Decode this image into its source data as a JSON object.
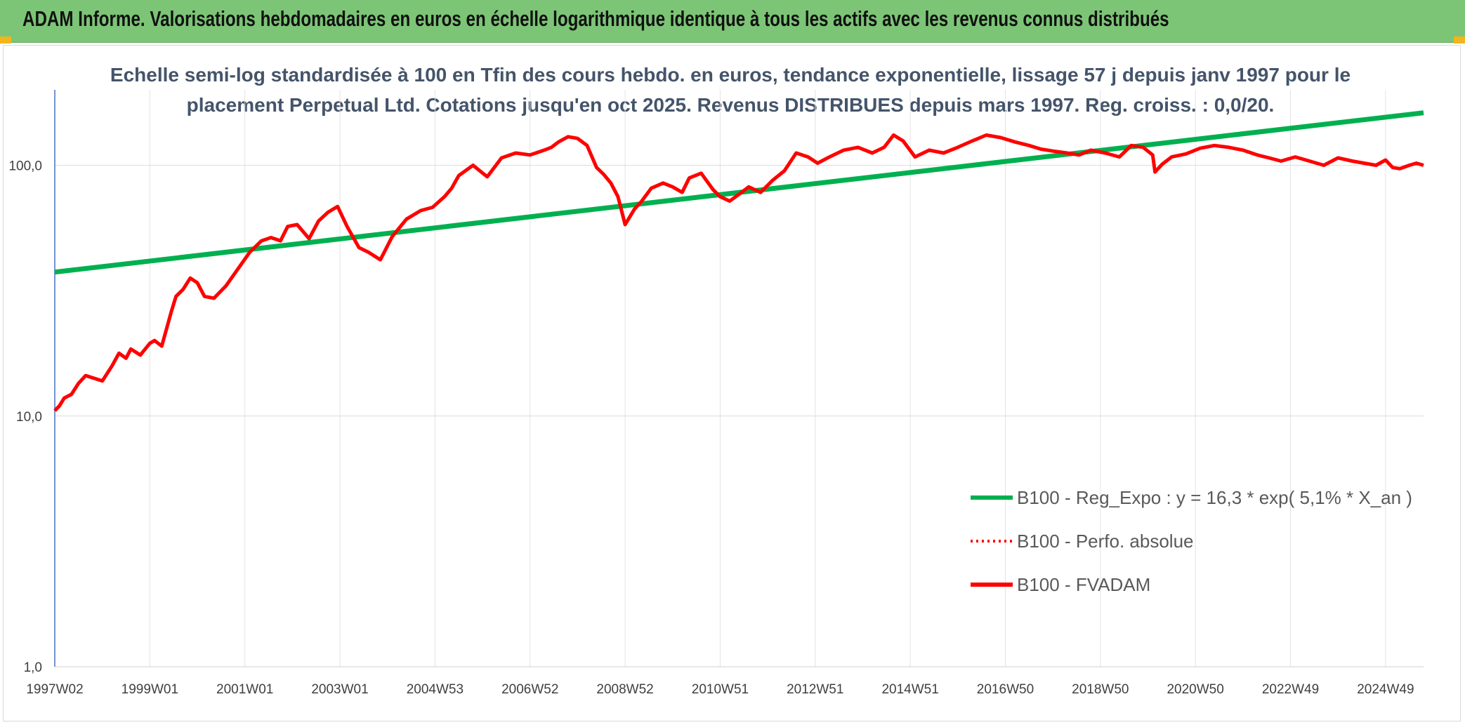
{
  "header": {
    "title": "ADAM Informe. Valorisations hebdomadaires en euros en échelle logarithmique identique à tous les actifs avec les revenus connus distribués"
  },
  "colors": {
    "header_bg": "#7cc576",
    "regression": "#00b050",
    "series": "#ff0000"
  },
  "chart_data": {
    "type": "line",
    "title": "",
    "subtitle_lines": [
      "Echelle semi-log standardisée à 100 en Tfin des cours hebdo. en euros, tendance exponentielle, lissage 57 j depuis janv 1997 pour le",
      "placement Perpetual Ltd. Cotations jusqu'en oct 2025. Revenus DISTRIBUES depuis mars 1997. Reg. croiss. : 0,0/20."
    ],
    "xlabel": "",
    "ylabel": "",
    "y_scale": "log",
    "ylim": [
      1,
      200
    ],
    "y_ticks": [
      1,
      10,
      100
    ],
    "y_tick_labels": [
      "1,0",
      "10,0",
      "100,0"
    ],
    "xlim": [
      1997.0,
      2025.8
    ],
    "x_ticks": [
      1997.0,
      1999.0,
      2001.0,
      2003.0,
      2005.0,
      2007.0,
      2009.0,
      2011.0,
      2013.0,
      2015.0,
      2017.0,
      2019.0,
      2021.0,
      2023.0,
      2025.0
    ],
    "x_tick_labels": [
      "1997W02",
      "1999W01",
      "2001W01",
      "2003W01",
      "2004W53",
      "2006W52",
      "2008W52",
      "2010W51",
      "2012W51",
      "2014W51",
      "2016W50",
      "2018W50",
      "2020W50",
      "2022W49",
      "2024W49"
    ],
    "grid": true,
    "legend_position": "right",
    "series": [
      {
        "name": "B100 - Reg_Expo : y = 16,3 * exp( 5,1% *  X_an )",
        "style": "solid-thick",
        "color": "#00b050",
        "x": [
          1997.0,
          2025.8
        ],
        "values": [
          37.5,
          162
        ]
      },
      {
        "name": "B100 - Perfo. absolue",
        "style": "dotted",
        "color": "#ff0000",
        "x": [],
        "values": []
      },
      {
        "name": "B100 - FVADAM",
        "style": "solid",
        "color": "#ff0000",
        "x": [
          1997.0,
          1997.1,
          1997.2,
          1997.35,
          1997.5,
          1997.65,
          1997.8,
          1998.0,
          1998.2,
          1998.35,
          1998.5,
          1998.6,
          1998.8,
          1999.0,
          1999.1,
          1999.25,
          1999.45,
          1999.55,
          1999.7,
          1999.85,
          2000.0,
          2000.15,
          2000.35,
          2000.6,
          2000.85,
          2001.1,
          2001.35,
          2001.55,
          2001.75,
          2001.9,
          2002.1,
          2002.35,
          2002.55,
          2002.75,
          2002.95,
          2003.15,
          2003.4,
          2003.6,
          2003.85,
          2004.1,
          2004.4,
          2004.7,
          2004.95,
          2005.2,
          2005.35,
          2005.5,
          2005.8,
          2006.1,
          2006.4,
          2006.7,
          2007.0,
          2007.3,
          2007.45,
          2007.6,
          2007.8,
          2008.0,
          2008.2,
          2008.4,
          2008.55,
          2008.7,
          2008.85,
          2009.0,
          2009.2,
          2009.35,
          2009.55,
          2009.8,
          2010.0,
          2010.2,
          2010.35,
          2010.6,
          2010.85,
          2011.0,
          2011.2,
          2011.45,
          2011.6,
          2011.85,
          2012.1,
          2012.35,
          2012.6,
          2012.85,
          2013.05,
          2013.3,
          2013.6,
          2013.9,
          2014.2,
          2014.45,
          2014.65,
          2014.85,
          2015.1,
          2015.4,
          2015.7,
          2016.0,
          2016.3,
          2016.6,
          2016.9,
          2017.2,
          2017.5,
          2017.75,
          2018.0,
          2018.3,
          2018.55,
          2018.8,
          2019.1,
          2019.4,
          2019.65,
          2019.9,
          2020.1,
          2020.15,
          2020.3,
          2020.5,
          2020.8,
          2021.1,
          2021.4,
          2021.7,
          2022.0,
          2022.3,
          2022.55,
          2022.8,
          2023.1,
          2023.4,
          2023.7,
          2024.0,
          2024.3,
          2024.55,
          2024.8,
          2025.0,
          2025.15,
          2025.3,
          2025.5,
          2025.65,
          2025.8
        ],
        "values": [
          10.5,
          11.0,
          11.8,
          12.2,
          13.5,
          14.5,
          14.2,
          13.8,
          15.8,
          17.8,
          17.0,
          18.5,
          17.5,
          19.5,
          20.0,
          19.0,
          26.0,
          30.0,
          32.0,
          35.5,
          34.0,
          30.0,
          29.5,
          33.0,
          38.5,
          45.0,
          50.0,
          51.5,
          50.0,
          57.0,
          58.0,
          51.0,
          60.0,
          65.0,
          68.5,
          57.0,
          47.0,
          45.0,
          42.0,
          52.0,
          61.0,
          66.0,
          68.0,
          75.0,
          81.0,
          91.0,
          100.0,
          90.0,
          107.0,
          112.0,
          110.0,
          115.0,
          118.0,
          124.0,
          130.0,
          128.0,
          120.0,
          98.0,
          92.0,
          85.0,
          75.0,
          58.0,
          67.0,
          72.0,
          81.0,
          85.0,
          82.0,
          78.0,
          89.0,
          93.0,
          80.0,
          75.0,
          72.0,
          78.0,
          82.0,
          78.0,
          87.0,
          95.0,
          112.0,
          108.0,
          102.0,
          108.0,
          115.0,
          118.0,
          112.0,
          118.0,
          132.0,
          125.0,
          108.0,
          115.0,
          112.0,
          118.0,
          125.0,
          132.0,
          129.0,
          124.0,
          120.0,
          116.0,
          114.0,
          112.0,
          110.0,
          115.0,
          112.0,
          108.0,
          120.0,
          118.0,
          110.0,
          94.0,
          101.0,
          108.0,
          111.0,
          117.0,
          120.0,
          118.0,
          115.0,
          110.0,
          107.0,
          104.0,
          108.0,
          104.0,
          100.0,
          107.0,
          104.0,
          102.0,
          100.0,
          105.0,
          98.0,
          97.0,
          100.0,
          102.0,
          100.0
        ]
      }
    ]
  }
}
